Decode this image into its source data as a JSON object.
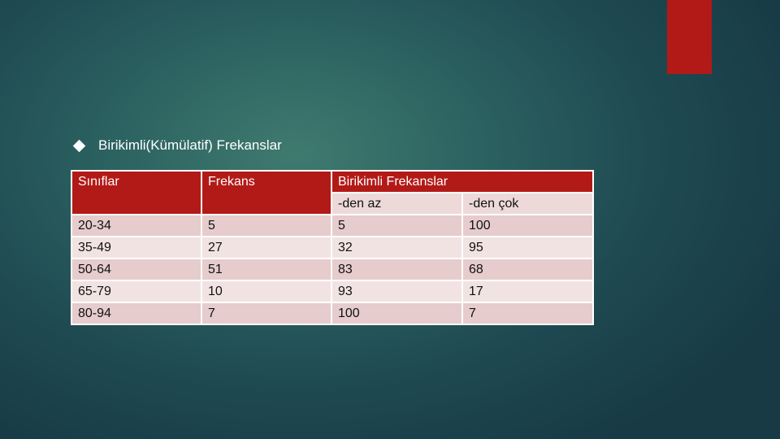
{
  "slide": {
    "bullet_text": "Birikimli(Kümülatif) Frekanslar",
    "accent_color": "#b21a17"
  },
  "table": {
    "headers": {
      "classes": "Sınıflar",
      "frequency": "Frekans",
      "cumulative": "Birikimli Frekanslar",
      "less_than": "-den az",
      "more_than": "-den çok"
    },
    "rows": [
      [
        "20-34",
        "5",
        "5",
        "100"
      ],
      [
        "35-49",
        "27",
        "32",
        "95"
      ],
      [
        "50-64",
        "51",
        "83",
        "68"
      ],
      [
        "65-79",
        "10",
        "93",
        "17"
      ],
      [
        "80-94",
        "7",
        "100",
        "7"
      ]
    ]
  }
}
